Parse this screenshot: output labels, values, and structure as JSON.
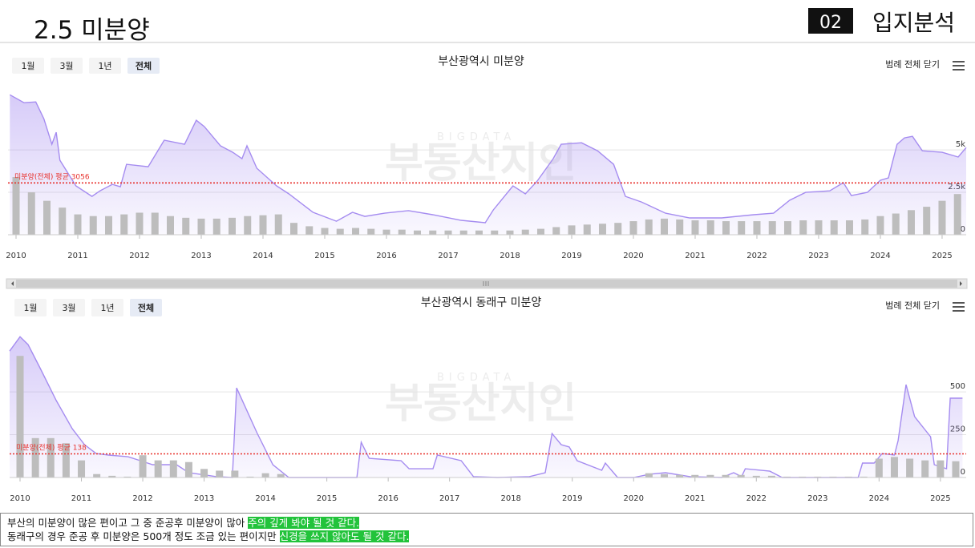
{
  "header": {
    "title": "2.5 미분양",
    "section_number": "02",
    "section_title": "입지분석"
  },
  "chart_data": [
    {
      "type": "combo",
      "title": "부산광역시 미분양",
      "legend_toggle": "범례 전체 닫기",
      "buttons": [
        {
          "label": "1월"
        },
        {
          "label": "3월"
        },
        {
          "label": "1년"
        },
        {
          "label": "전체",
          "selected": true
        }
      ],
      "watermark": {
        "top": "BIGDATA",
        "main": "부동산지인"
      },
      "xlim": [
        2009.87,
        2025.39
      ],
      "xticks": [
        2010,
        2011,
        2012,
        2013,
        2014,
        2015,
        2016,
        2017,
        2018,
        2019,
        2020,
        2021,
        2022,
        2023,
        2024,
        2025
      ],
      "ylim": [
        0,
        8500
      ],
      "yticks": [
        0,
        {
          "value": 2500,
          "label": "2.5k"
        },
        {
          "value": 5000,
          "label": "5k"
        }
      ],
      "grid": true,
      "average": {
        "value": 3056,
        "label": "미분양(전체) 평균 3056",
        "color": "#e8322e"
      },
      "series": [
        {
          "type": "area",
          "color": "#a58cf0",
          "x": [
            2009.9,
            2010.13,
            2010.32,
            2010.45,
            2010.58,
            2010.65,
            2010.71,
            2010.97,
            2011.23,
            2011.36,
            2011.56,
            2011.69,
            2011.79,
            2012.14,
            2012.4,
            2012.73,
            2012.92,
            2013.05,
            2013.31,
            2013.51,
            2013.66,
            2013.74,
            2013.9,
            2014.22,
            2014.42,
            2014.81,
            2015.19,
            2015.45,
            2015.65,
            2015.97,
            2016.36,
            2016.75,
            2017.21,
            2017.6,
            2017.73,
            2018.05,
            2018.25,
            2018.44,
            2018.7,
            2018.83,
            2019.16,
            2019.42,
            2019.68,
            2019.87,
            2020.13,
            2020.52,
            2020.91,
            2021.43,
            2021.95,
            2022.27,
            2022.53,
            2022.79,
            2023.18,
            2023.4,
            2023.53,
            2023.79,
            2024.0,
            2024.13,
            2024.27,
            2024.39,
            2024.52,
            2024.68,
            2025.0,
            2025.26,
            2025.39
          ],
          "values": [
            8250,
            7780,
            7830,
            6840,
            5330,
            6040,
            4390,
            2880,
            2260,
            2590,
            2970,
            2830,
            4150,
            4010,
            5570,
            5330,
            6750,
            6370,
            5240,
            4860,
            4480,
            5240,
            3920,
            2880,
            2410,
            1320,
            800,
            1320,
            1080,
            1270,
            1420,
            1180,
            850,
            710,
            1460,
            2880,
            2410,
            3160,
            4480,
            5330,
            5420,
            4950,
            4150,
            2260,
            1930,
            1270,
            990,
            990,
            1180,
            1270,
            2030,
            2500,
            2590,
            3070,
            2310,
            2500,
            3210,
            3350,
            5330,
            5710,
            5800,
            4950,
            4860,
            4580,
            5140
          ]
        },
        {
          "type": "bar",
          "color": "#bdbdbd",
          "x": [
            2010,
            2010.25,
            2010.5,
            2010.75,
            2011,
            2011.25,
            2011.5,
            2011.75,
            2012,
            2012.25,
            2012.5,
            2012.75,
            2013,
            2013.25,
            2013.5,
            2013.75,
            2014,
            2014.25,
            2014.5,
            2014.75,
            2015,
            2015.25,
            2015.5,
            2015.75,
            2016,
            2016.25,
            2016.5,
            2016.75,
            2017,
            2017.25,
            2017.5,
            2017.75,
            2018,
            2018.25,
            2018.5,
            2018.75,
            2019,
            2019.25,
            2019.5,
            2019.75,
            2020,
            2020.25,
            2020.5,
            2020.75,
            2021,
            2021.25,
            2021.5,
            2021.75,
            2022,
            2022.25,
            2022.5,
            2022.75,
            2023,
            2023.25,
            2023.5,
            2023.75,
            2024,
            2024.25,
            2024.5,
            2024.75,
            2025,
            2025.25
          ],
          "values": [
            3400,
            2500,
            2000,
            1600,
            1200,
            1100,
            1100,
            1200,
            1300,
            1300,
            1100,
            1000,
            950,
            950,
            1000,
            1100,
            1150,
            1200,
            700,
            500,
            400,
            350,
            400,
            350,
            300,
            300,
            250,
            250,
            250,
            250,
            250,
            250,
            250,
            300,
            350,
            450,
            550,
            600,
            650,
            700,
            800,
            900,
            950,
            900,
            850,
            850,
            800,
            800,
            800,
            800,
            800,
            850,
            850,
            850,
            850,
            900,
            1100,
            1250,
            1450,
            1650,
            2000,
            2400
          ]
        }
      ]
    },
    {
      "type": "combo",
      "title": "부산광역시 동래구 미분양",
      "legend_toggle": "범례 전체 닫기",
      "buttons": [
        {
          "label": "1월"
        },
        {
          "label": "3월"
        },
        {
          "label": "1년"
        },
        {
          "label": "전체",
          "selected": true
        }
      ],
      "watermark": {
        "top": "BIGDATA",
        "main": "부동산지인"
      },
      "xlim": [
        2009.83,
        2025.42
      ],
      "xticks": [
        2010,
        2011,
        2012,
        2013,
        2014,
        2015,
        2016,
        2017,
        2018,
        2019,
        2020,
        2021,
        2022,
        2023,
        2024,
        2025
      ],
      "ylim": [
        0,
        870
      ],
      "yticks": [
        0,
        250,
        500
      ],
      "grid": true,
      "average": {
        "value": 138,
        "label": "미분양(전체) 평균 138",
        "color": "#e8322e"
      },
      "series": [
        {
          "type": "area",
          "color": "#a58cf0",
          "x": [
            2009.83,
            2010.0,
            2010.13,
            2010.33,
            2010.59,
            2010.85,
            2011.05,
            2011.24,
            2011.44,
            2011.76,
            2011.96,
            2012.16,
            2012.55,
            2012.75,
            2013.2,
            2013.46,
            2013.53,
            2013.86,
            2014.12,
            2014.38,
            2015.49,
            2015.56,
            2015.69,
            2016.21,
            2016.34,
            2016.73,
            2016.8,
            2017.19,
            2017.39,
            2017.78,
            2018.3,
            2018.56,
            2018.67,
            2018.82,
            2018.95,
            2019.08,
            2019.48,
            2019.54,
            2019.74,
            2020.0,
            2020.26,
            2020.52,
            2020.92,
            2021.44,
            2021.63,
            2021.76,
            2021.82,
            2022.22,
            2022.42,
            2023.66,
            2023.73,
            2023.92,
            2024.05,
            2024.25,
            2024.31,
            2024.44,
            2024.58,
            2024.84,
            2024.9,
            2025.1,
            2025.16,
            2025.36
          ],
          "values": [
            738,
            822,
            776,
            636,
            449,
            285,
            192,
            140,
            131,
            121,
            98,
            75,
            75,
            28,
            5,
            0,
            523,
            262,
            75,
            0,
            0,
            206,
            112,
            98,
            51,
            51,
            131,
            98,
            5,
            0,
            5,
            28,
            257,
            192,
            178,
            98,
            42,
            84,
            0,
            0,
            19,
            28,
            5,
            0,
            28,
            5,
            51,
            37,
            0,
            0,
            84,
            84,
            140,
            131,
            215,
            542,
            355,
            238,
            75,
            51,
            463,
            463
          ]
        },
        {
          "type": "bar",
          "color": "#bdbdbd",
          "x": [
            2010,
            2010.25,
            2010.5,
            2010.75,
            2011,
            2011.25,
            2011.5,
            2011.75,
            2012,
            2012.25,
            2012.5,
            2012.75,
            2013,
            2013.25,
            2013.5,
            2013.75,
            2014,
            2014.25,
            2014.5,
            2014.75,
            2015,
            2015.25,
            2015.5,
            2015.75,
            2016,
            2016.25,
            2016.5,
            2016.75,
            2017,
            2017.25,
            2017.5,
            2017.75,
            2018,
            2018.25,
            2018.5,
            2018.75,
            2019,
            2019.25,
            2019.5,
            2019.75,
            2020,
            2020.25,
            2020.5,
            2020.75,
            2021,
            2021.25,
            2021.5,
            2021.75,
            2022,
            2022.25,
            2022.5,
            2022.75,
            2023,
            2023.25,
            2023.5,
            2023.75,
            2024,
            2024.25,
            2024.5,
            2024.75,
            2025,
            2025.25
          ],
          "values": [
            710,
            230,
            230,
            200,
            100,
            20,
            10,
            5,
            130,
            100,
            100,
            90,
            50,
            40,
            40,
            5,
            25,
            20,
            0,
            0,
            0,
            0,
            0,
            0,
            0,
            0,
            0,
            0,
            0,
            0,
            0,
            0,
            0,
            0,
            0,
            0,
            0,
            0,
            0,
            0,
            0,
            25,
            20,
            15,
            15,
            15,
            15,
            15,
            10,
            10,
            5,
            5,
            5,
            5,
            5,
            5,
            110,
            120,
            110,
            100,
            100,
            95
          ]
        }
      ]
    }
  ],
  "note": {
    "lines": [
      {
        "text": "부산의 미분양이 많은 편이고 그 중 준공후 미분양이 많아 ",
        "highlight": "주의 깊게 봐야 될 것 같다."
      },
      {
        "text": "동래구의 경우 준공 후 미분양은 500개 정도 조금 있는 편이지만 ",
        "highlight": "신경을 쓰지 않아도 될 것 같다."
      }
    ]
  }
}
